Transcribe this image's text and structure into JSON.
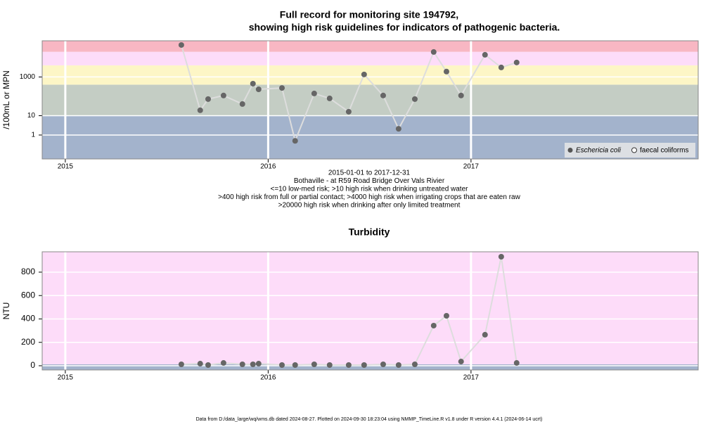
{
  "chart_data": [
    {
      "type": "scatter-line",
      "title": [
        "Full record for monitoring site 194792,",
        "showing high risk guidelines for indicators of pathogenic bacteria."
      ],
      "ylabel": "/100mL or MPN",
      "notes": [
        "2015-01-01 to 2017-12-31",
        "Bothaville - at R59 Road Bridge Over Vals Rivier",
        "<=10 low-med risk; >10 high risk when drinking untreated water",
        ">400 high risk from full or partial contact; >4000 high risk when irrigating crops that are eaten raw",
        ">20000 high risk when drinking after only limited treatment"
      ],
      "log_y": true,
      "xlim": [
        2014.886,
        2018.12
      ],
      "xticks": [
        2015,
        2016,
        2017
      ],
      "ylim": [
        0.058,
        74000
      ],
      "yticks": [
        1,
        10,
        1000
      ],
      "thresholds": [
        10,
        400,
        4000,
        20000
      ],
      "band_colors": [
        "#a3b3cc",
        "#c4cdc4",
        "#fdf6c6",
        "#fddcf9",
        "#f8b7c3"
      ],
      "legend": [
        "Eschericia coli",
        "faecal coliforms"
      ],
      "series": [
        {
          "name": "Eschericia coli",
          "color": "#666666",
          "x": [
            2015.572,
            2015.665,
            2015.704,
            2015.78,
            2015.873,
            2015.925,
            2015.953,
            2016.068,
            2016.133,
            2016.227,
            2016.303,
            2016.397,
            2016.473,
            2016.567,
            2016.643,
            2016.723,
            2016.816,
            2016.879,
            2016.951,
            2017.069,
            2017.149,
            2017.225
          ],
          "values": [
            45000,
            19,
            72,
            110,
            40,
            450,
            230,
            270,
            0.5,
            140,
            78,
            16,
            1350,
            110,
            2.1,
            72,
            19500,
            1900,
            110,
            14000,
            3100,
            5600
          ]
        }
      ]
    },
    {
      "type": "scatter-line",
      "title": [
        "Turbidity"
      ],
      "ylabel": "NTU",
      "log_y": false,
      "xlim": [
        2014.886,
        2018.12
      ],
      "xticks": [
        2015,
        2016,
        2017
      ],
      "ylim": [
        -36,
        974
      ],
      "yticks": [
        0,
        200,
        400,
        600,
        800
      ],
      "thresholds": [
        12
      ],
      "band_colors": [
        "#a3b3cc",
        "#fddcf9"
      ],
      "series": [
        {
          "name": "Turbidity",
          "color": "#666666",
          "x": [
            2015.572,
            2015.665,
            2015.704,
            2015.78,
            2015.873,
            2015.925,
            2015.953,
            2016.068,
            2016.133,
            2016.227,
            2016.303,
            2016.397,
            2016.473,
            2016.567,
            2016.643,
            2016.723,
            2016.816,
            2016.879,
            2016.951,
            2017.069,
            2017.149,
            2017.225
          ],
          "values": [
            12,
            18,
            6,
            24,
            12,
            12,
            18,
            6,
            6,
            12,
            6,
            6,
            6,
            12,
            6,
            12,
            343,
            427,
            36,
            265,
            932,
            24
          ]
        }
      ]
    }
  ],
  "footer": "Data from D:/data_large/wq/wms.db dated 2024-08-27. Plotted on 2024-09-30 18:23:04 using NMMP_TimeLine.R v1.8 under R version 4.4.1 (2024-06-14 ucrt)"
}
